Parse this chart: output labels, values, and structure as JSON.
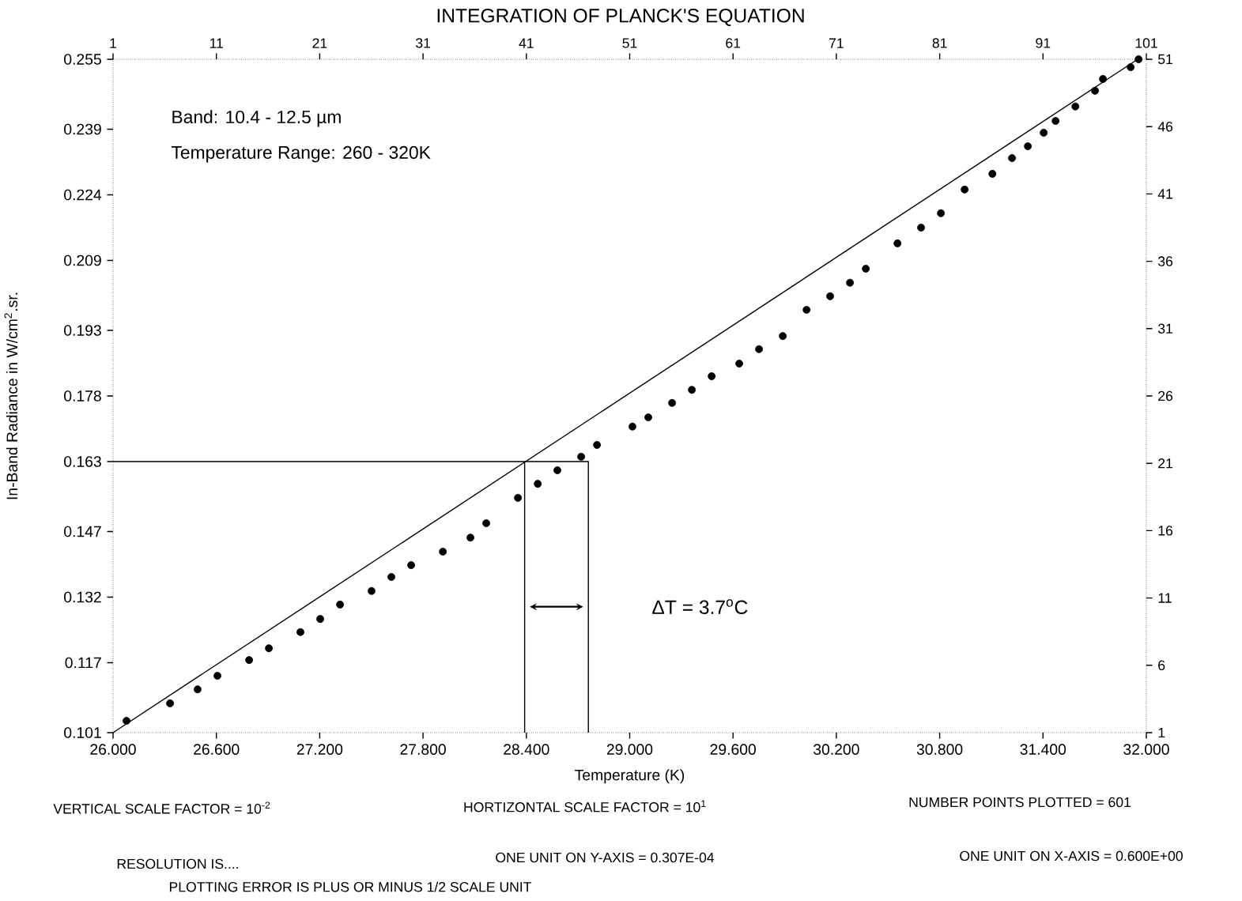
{
  "chart_data": {
    "type": "line",
    "title": "INTEGRATION OF PLANCK'S EQUATION",
    "xlabel": "Temperature (K)",
    "ylabel": "In-Band Radiance in W/cm$^{2}$.sr.",
    "xlim": [
      26.0,
      32.0
    ],
    "xticks": [
      {
        "value": 26.0,
        "label": "26.000"
      },
      {
        "value": 26.6,
        "label": "26.600"
      },
      {
        "value": 27.2,
        "label": "27.200"
      },
      {
        "value": 27.8,
        "label": "27.800"
      },
      {
        "value": 28.4,
        "label": "28.400"
      },
      {
        "value": 29.0,
        "label": "29.000"
      },
      {
        "value": 29.6,
        "label": "29.600"
      },
      {
        "value": 30.2,
        "label": "30.200"
      },
      {
        "value": 30.8,
        "label": "30.800"
      },
      {
        "value": 31.4,
        "label": "31.400"
      },
      {
        "value": 32.0,
        "label": "32.000"
      }
    ],
    "ylim": [
      0.101,
      0.255
    ],
    "yticks": [
      0.101,
      0.117,
      0.132,
      0.147,
      0.163,
      0.178,
      0.193,
      0.209,
      0.224,
      0.239,
      0.255
    ],
    "x2lim": [
      1,
      101
    ],
    "x2ticks": [
      1,
      11,
      21,
      31,
      41,
      51,
      61,
      71,
      81,
      91,
      101
    ],
    "y2lim": [
      1,
      51
    ],
    "y2ticks": [
      1,
      6,
      11,
      16,
      21,
      26,
      31,
      36,
      41,
      46,
      51
    ],
    "grid": false,
    "annotations": [
      "Band: 10.4 - 12.5 µm",
      "Temperature Range: 260 - 320K",
      "ΔT = 3.7$^{o}$C",
      "VERTICAL SCALE FACTOR = 10$^{-2}$",
      "HORTIZONTAL SCALE FACTOR = 10$^{1}$",
      "NUMBER POINTS PLOTTED = 601",
      "RESOLUTION IS....",
      "ONE UNIT ON Y-AXIS = 0.307E-04",
      "ONE UNIT ON X-AXIS = 0.600E+00",
      "PLOTTING ERROR IS PLUS OR MINUS 1/2 SCALE UNIT"
    ],
    "series": [
      {
        "color": "#000000",
        "marker": "none",
        "x": [
          26.0,
          31.95
        ],
        "values": [
          0.101,
          0.255
        ]
      },
      {
        "type": "scatter",
        "color": "#000000",
        "marker": "circle",
        "x": [
          26.078,
          26.331,
          26.491,
          26.606,
          26.79,
          26.905,
          27.088,
          27.203,
          27.318,
          27.501,
          27.616,
          27.731,
          27.915,
          28.075,
          28.167,
          28.351,
          28.466,
          28.58,
          28.718,
          28.81,
          29.016,
          29.108,
          29.246,
          29.361,
          29.476,
          29.636,
          29.751,
          29.889,
          30.027,
          30.164,
          30.279,
          30.371,
          30.555,
          30.692,
          30.807,
          30.945,
          31.106,
          31.22,
          31.312,
          31.404,
          31.473,
          31.588,
          31.702,
          31.748,
          31.909,
          31.955
        ],
        "values": [
          0.1037,
          0.1077,
          0.1109,
          0.114,
          0.1176,
          0.1203,
          0.124,
          0.127,
          0.1303,
          0.1334,
          0.1366,
          0.1393,
          0.1424,
          0.1456,
          0.1489,
          0.1547,
          0.1579,
          0.161,
          0.1641,
          0.1668,
          0.171,
          0.1731,
          0.1764,
          0.1794,
          0.1825,
          0.1854,
          0.1887,
          0.1917,
          0.1977,
          0.2008,
          0.2039,
          0.2071,
          0.2129,
          0.2165,
          0.2198,
          0.2252,
          0.2288,
          0.2324,
          0.2351,
          0.2382,
          0.2409,
          0.2442,
          0.2478,
          0.2505,
          0.2532,
          0.255
        ]
      },
      {
        "color": "#000000",
        "marker": "none",
        "x": [
          26.0,
          28.76,
          28.76
        ],
        "values": [
          0.163,
          0.163,
          0.101
        ]
      },
      {
        "color": "#000000",
        "marker": "none",
        "x": [
          28.39,
          28.39
        ],
        "values": [
          0.163,
          0.101
        ]
      }
    ]
  }
}
